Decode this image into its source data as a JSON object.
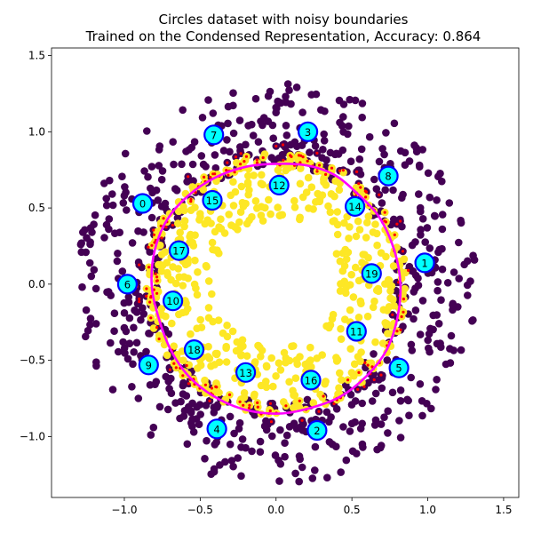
{
  "chart_data": {
    "type": "scatter",
    "title": [
      "Circles dataset with noisy boundaries",
      "Trained on the Condensed Representation, Accuracy: 0.864"
    ],
    "xlabel": "",
    "ylabel": "",
    "xlim": [
      -1.48,
      1.6
    ],
    "ylim": [
      -1.4,
      1.55
    ],
    "x_ticks": [
      -1.0,
      -0.5,
      0.0,
      0.5,
      1.0,
      1.5
    ],
    "x_tick_labels": [
      "−1.0",
      "−0.5",
      "0.0",
      "0.5",
      "1.0",
      "1.5"
    ],
    "y_ticks": [
      -1.0,
      -0.5,
      0.0,
      0.5,
      1.0,
      1.5
    ],
    "y_tick_labels": [
      "−1.0",
      "−0.5",
      "0.0",
      "0.5",
      "1.0",
      "1.5"
    ],
    "grid": false,
    "legend": "none",
    "colors": {
      "class_outer": "#440154",
      "class_inner": "#fde725",
      "misclassified": "#ff0000",
      "boundary": "#ff00ff",
      "prototype_fill": "#00ffff",
      "prototype_edge": "#0000ff"
    },
    "outer_ring_radius_range": [
      0.78,
      1.32
    ],
    "inner_ring_radius_range": [
      0.42,
      0.86
    ],
    "decision_boundary": {
      "type": "closed-curve",
      "points": [
        [
          0.0,
          0.79
        ],
        [
          0.2,
          0.78
        ],
        [
          0.38,
          0.72
        ],
        [
          0.53,
          0.6
        ],
        [
          0.68,
          0.44
        ],
        [
          0.78,
          0.22
        ],
        [
          0.82,
          0.0
        ],
        [
          0.8,
          -0.22
        ],
        [
          0.73,
          -0.43
        ],
        [
          0.6,
          -0.6
        ],
        [
          0.42,
          -0.74
        ],
        [
          0.2,
          -0.82
        ],
        [
          0.0,
          -0.85
        ],
        [
          -0.22,
          -0.82
        ],
        [
          -0.42,
          -0.73
        ],
        [
          -0.58,
          -0.6
        ],
        [
          -0.7,
          -0.42
        ],
        [
          -0.78,
          -0.2
        ],
        [
          -0.82,
          0.0
        ],
        [
          -0.8,
          0.22
        ],
        [
          -0.72,
          0.42
        ],
        [
          -0.58,
          0.58
        ],
        [
          -0.4,
          0.7
        ],
        [
          -0.2,
          0.77
        ]
      ]
    },
    "prototypes": [
      {
        "label": "0",
        "x": -0.88,
        "y": 0.53
      },
      {
        "label": "1",
        "x": 0.98,
        "y": 0.14
      },
      {
        "label": "2",
        "x": 0.27,
        "y": -0.96
      },
      {
        "label": "3",
        "x": 0.21,
        "y": 1.0
      },
      {
        "label": "4",
        "x": -0.39,
        "y": -0.95
      },
      {
        "label": "5",
        "x": 0.81,
        "y": -0.55
      },
      {
        "label": "6",
        "x": -0.98,
        "y": 0.0
      },
      {
        "label": "7",
        "x": -0.41,
        "y": 0.98
      },
      {
        "label": "8",
        "x": 0.74,
        "y": 0.71
      },
      {
        "label": "9",
        "x": -0.84,
        "y": -0.53
      },
      {
        "label": "10",
        "x": -0.68,
        "y": -0.11
      },
      {
        "label": "11",
        "x": 0.53,
        "y": -0.31
      },
      {
        "label": "12",
        "x": 0.02,
        "y": 0.65
      },
      {
        "label": "13",
        "x": -0.2,
        "y": -0.58
      },
      {
        "label": "14",
        "x": 0.52,
        "y": 0.51
      },
      {
        "label": "15",
        "x": -0.42,
        "y": 0.55
      },
      {
        "label": "16",
        "x": 0.23,
        "y": -0.63
      },
      {
        "label": "17",
        "x": -0.64,
        "y": 0.22
      },
      {
        "label": "18",
        "x": -0.54,
        "y": -0.43
      },
      {
        "label": "19",
        "x": 0.63,
        "y": 0.07
      }
    ]
  }
}
